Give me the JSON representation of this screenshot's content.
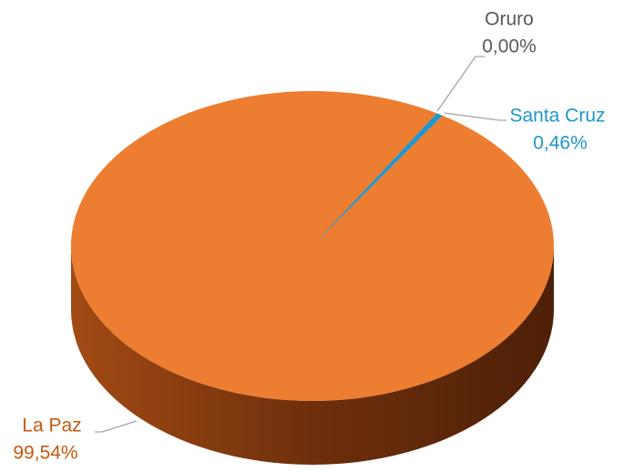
{
  "chart_data": {
    "type": "pie",
    "categories": [
      "Oruro",
      "Santa Cruz",
      "La Paz"
    ],
    "values": [
      0,
      0.46,
      99.54
    ],
    "value_labels": [
      "0,00%",
      "0,46%",
      "99,54%"
    ],
    "colors": [
      "#a5a5a5",
      "#1f97cf",
      "#ed7d31"
    ]
  }
}
